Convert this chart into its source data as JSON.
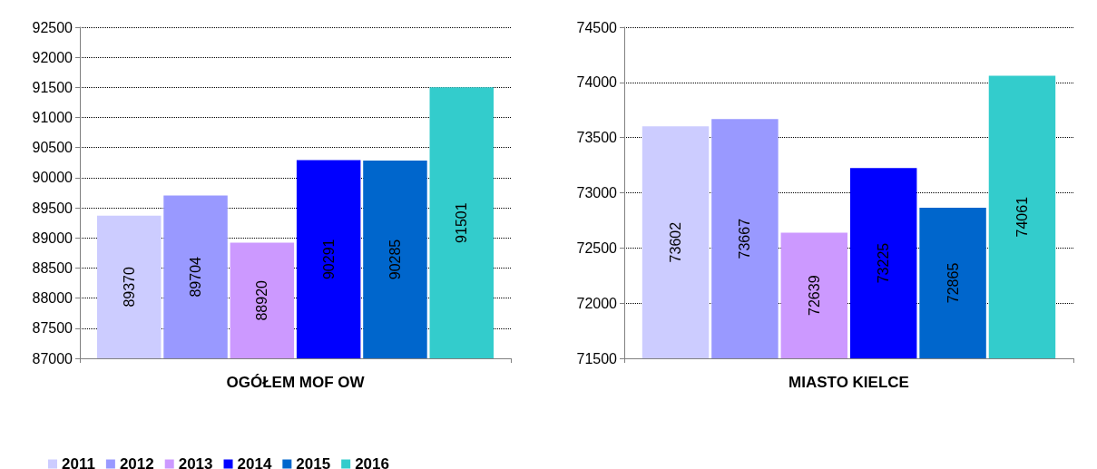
{
  "chart_data": [
    {
      "type": "bar",
      "categories": [
        "OGÓŁEM MOF OW"
      ],
      "ylim": [
        87000,
        92500
      ],
      "yticks": [
        87000,
        87500,
        88000,
        88500,
        89000,
        89500,
        90000,
        90500,
        91000,
        91500,
        92000,
        92500
      ],
      "grid": "y",
      "legend": "bottom",
      "data_labels": true,
      "series": [
        {
          "name": "2011",
          "color": "#ccccff",
          "values": [
            89370
          ]
        },
        {
          "name": "2012",
          "color": "#9999ff",
          "values": [
            89704
          ]
        },
        {
          "name": "2013",
          "color": "#cc99ff",
          "values": [
            88920
          ]
        },
        {
          "name": "2014",
          "color": "#0000ff",
          "values": [
            90291
          ]
        },
        {
          "name": "2015",
          "color": "#0066cc",
          "values": [
            90285
          ]
        },
        {
          "name": "2016",
          "color": "#33cccc",
          "values": [
            91501
          ]
        }
      ]
    },
    {
      "type": "bar",
      "categories": [
        "MIASTO KIELCE"
      ],
      "ylim": [
        71500,
        74500
      ],
      "yticks": [
        71500,
        72000,
        72500,
        73000,
        73500,
        74000,
        74500
      ],
      "grid": "y",
      "data_labels": true,
      "series": [
        {
          "name": "2011",
          "color": "#ccccff",
          "values": [
            73602
          ]
        },
        {
          "name": "2012",
          "color": "#9999ff",
          "values": [
            73667
          ]
        },
        {
          "name": "2013",
          "color": "#cc99ff",
          "values": [
            72639
          ]
        },
        {
          "name": "2014",
          "color": "#0000ff",
          "values": [
            73225
          ]
        },
        {
          "name": "2015",
          "color": "#0066cc",
          "values": [
            72865
          ]
        },
        {
          "name": "2016",
          "color": "#33cccc",
          "values": [
            74061
          ]
        }
      ]
    }
  ]
}
